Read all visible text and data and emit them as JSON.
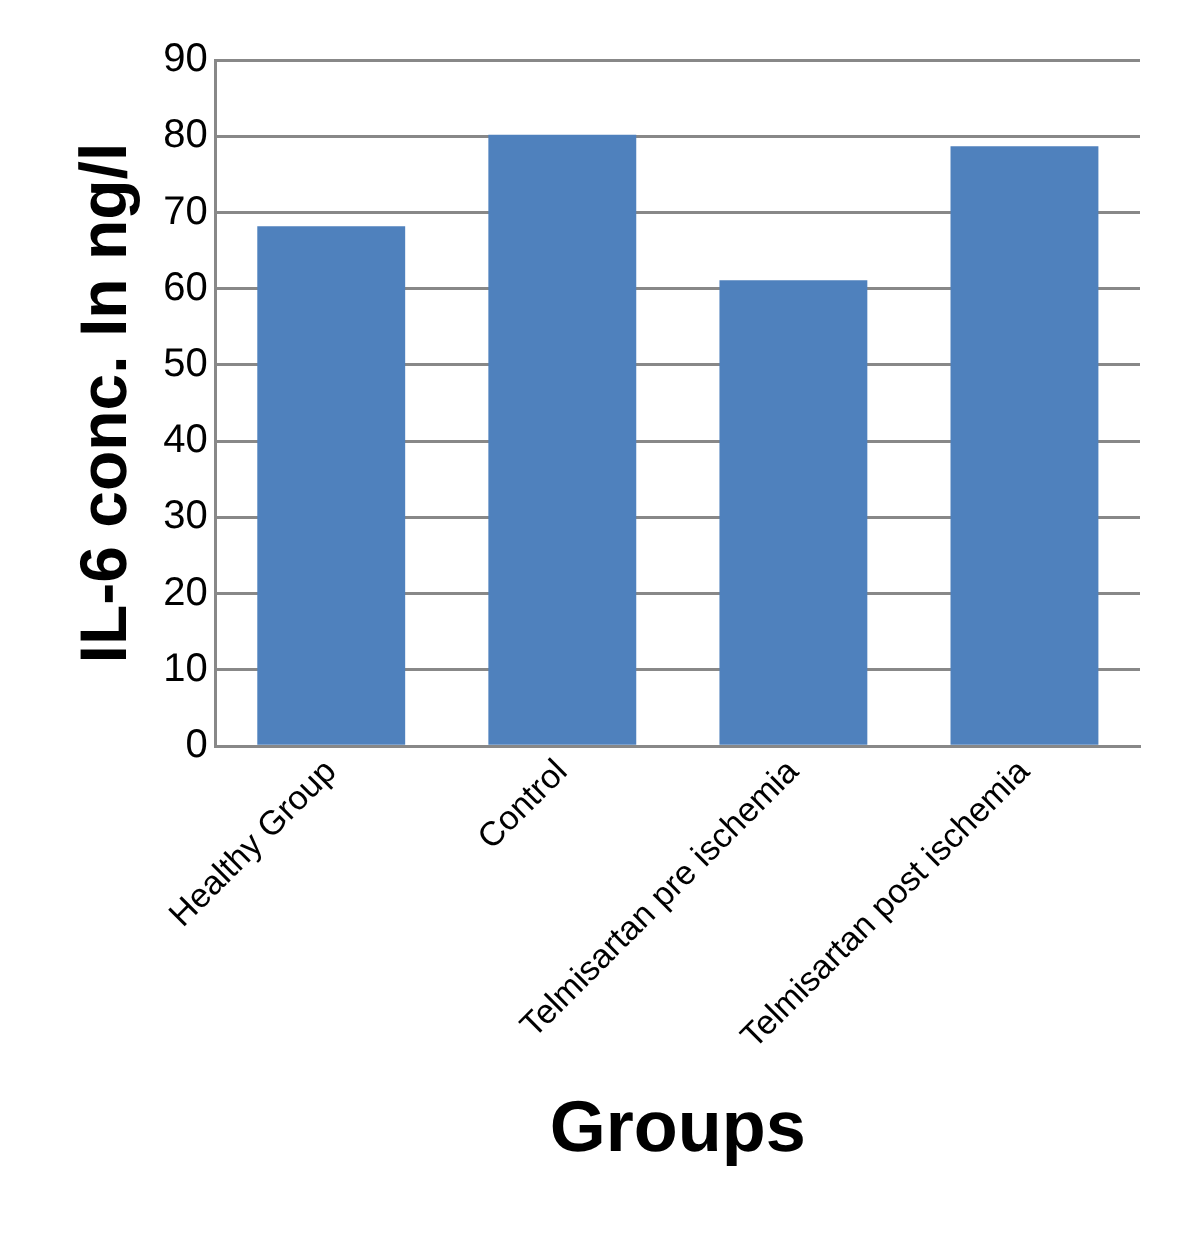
{
  "chart_data": {
    "type": "bar",
    "xlabel": "Groups",
    "ylabel": "IL-6 conc. In ng/l",
    "categories": [
      "Healthy Group",
      "Control",
      "Telmisartan pre ischemia",
      "Telmisartan post ischemia"
    ],
    "values": [
      68.2,
      80.2,
      61.1,
      78.7
    ],
    "color": "#4f81bd",
    "ylim": [
      0,
      90
    ],
    "yticks": [
      0,
      10,
      20,
      30,
      40,
      50,
      60,
      70,
      80,
      90
    ],
    "grid": "y",
    "legend": false
  }
}
